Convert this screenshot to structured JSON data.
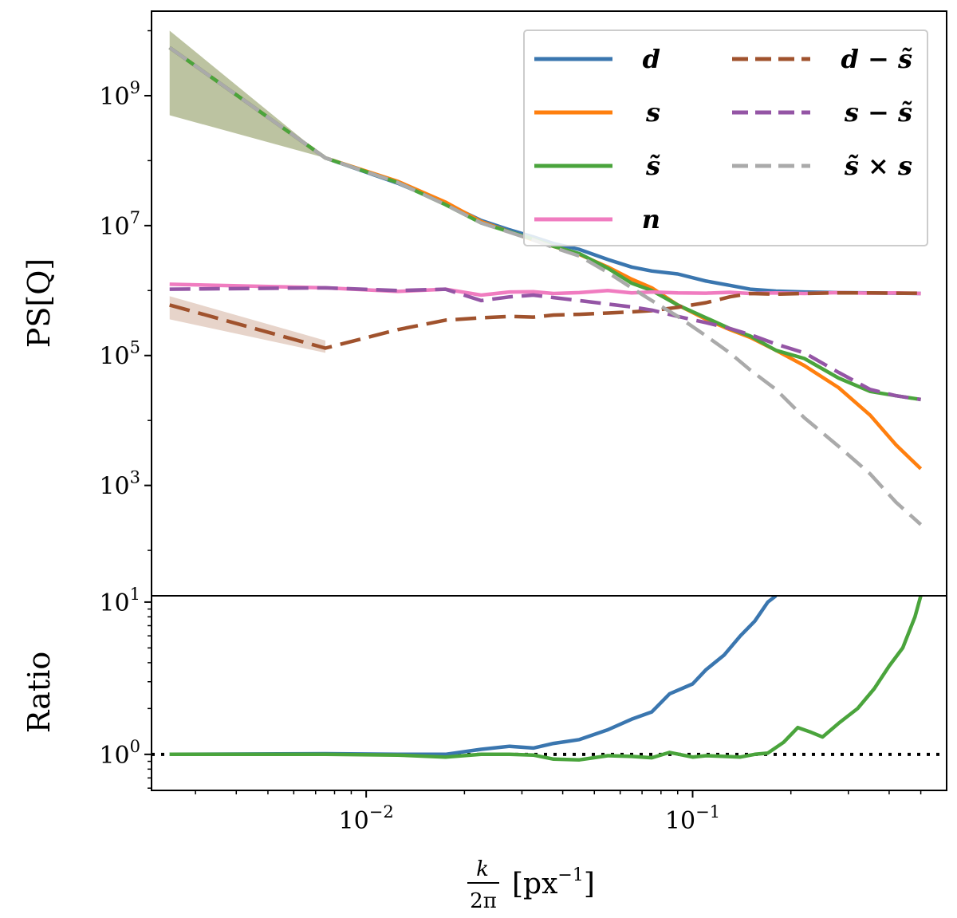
{
  "chart_data": [
    {
      "type": "line",
      "panel": "top",
      "ylabel": "PS[Q]",
      "xscale": "log",
      "yscale": "log",
      "xlim": [
        0.0022,
        0.6
      ],
      "ylim": [
        20,
        20000000000
      ],
      "yticks": [
        {
          "value": 1000,
          "label": "10",
          "exp": "3"
        },
        {
          "value": 100000,
          "label": "10",
          "exp": "5"
        },
        {
          "value": 10000000,
          "label": "10",
          "exp": "7"
        },
        {
          "value": 1000000000,
          "label": "10",
          "exp": "9"
        }
      ],
      "legend": {
        "position": "top-right",
        "columns": 2,
        "entries": [
          {
            "key": "d",
            "label": "d"
          },
          {
            "key": "s",
            "label": "s"
          },
          {
            "key": "s_tilde",
            "label": "s̃"
          },
          {
            "key": "n",
            "label": "n"
          },
          {
            "key": "d_minus_s_tilde",
            "label": "d − s̃"
          },
          {
            "key": "s_minus_s_tilde",
            "label": "s − s̃"
          },
          {
            "key": "s_tilde_times_s",
            "label": "s̃ × s"
          }
        ]
      },
      "bands": [
        {
          "name": "s_tilde_uncertainty",
          "color": "#6b7a2e",
          "opacity": 0.45,
          "x": [
            0.0025,
            0.0075
          ],
          "upper": [
            10000000000,
            110000000
          ],
          "lower": [
            500000000,
            110000000
          ]
        },
        {
          "name": "d_minus_s_tilde_uncertainty",
          "color": "#a0522d",
          "opacity": 0.25,
          "x": [
            0.0025,
            0.0075
          ],
          "upper": [
            820000,
            170000
          ],
          "lower": [
            360000,
            110000
          ]
        }
      ],
      "series": [
        {
          "key": "d",
          "name": "d",
          "color": "#3a76af",
          "dash": "solid",
          "x": [
            0.0025,
            0.0075,
            0.0125,
            0.0175,
            0.0225,
            0.0275,
            0.0325,
            0.0375,
            0.045,
            0.055,
            0.065,
            0.075,
            0.09,
            0.11,
            0.13,
            0.15,
            0.18,
            0.22,
            0.28,
            0.35,
            0.42,
            0.5
          ],
          "y": [
            5500000000,
            110000000,
            45000000,
            22000000,
            12000000,
            8600000,
            6700000,
            5300000,
            4300000,
            3000000,
            2300000,
            2000000,
            1800000,
            1400000,
            1200000,
            1050000,
            980000,
            950000,
            930000,
            920000,
            910000,
            900000
          ]
        },
        {
          "key": "s",
          "name": "s",
          "color": "#ff7f0e",
          "dash": "solid",
          "x": [
            0.0025,
            0.0075,
            0.0125,
            0.0175,
            0.0225,
            0.0275,
            0.0325,
            0.0375,
            0.045,
            0.055,
            0.065,
            0.075,
            0.09,
            0.11,
            0.13,
            0.15,
            0.18,
            0.22,
            0.28,
            0.35,
            0.42,
            0.5
          ],
          "y": [
            5500000000,
            110000000,
            48000000,
            23000000,
            11500000,
            8000000,
            6000000,
            4800000,
            3600000,
            2300000,
            1500000,
            1100000,
            600000,
            360000,
            250000,
            190000,
            120000,
            70000,
            32000,
            12000,
            4200,
            1800
          ]
        },
        {
          "key": "s_tilde",
          "name": "s̃",
          "color": "#4aa43c",
          "dash": "solid",
          "x": [
            0.0025,
            0.0075,
            0.0125,
            0.0175,
            0.0225,
            0.0275,
            0.0325,
            0.0375,
            0.045,
            0.055,
            0.065,
            0.075,
            0.09,
            0.11,
            0.13,
            0.15,
            0.18,
            0.22,
            0.28,
            0.35,
            0.42,
            0.5
          ],
          "y": [
            5500000000,
            110000000,
            46000000,
            21000000,
            11000000,
            8000000,
            6200000,
            4800000,
            3700000,
            2200000,
            1300000,
            1000000,
            600000,
            380000,
            260000,
            200000,
            120000,
            90000,
            45000,
            28000,
            24000,
            21000
          ]
        },
        {
          "key": "n",
          "name": "n",
          "color": "#f07cc0",
          "dash": "solid",
          "x": [
            0.0025,
            0.0075,
            0.0125,
            0.0175,
            0.0225,
            0.0275,
            0.0325,
            0.0375,
            0.045,
            0.055,
            0.065,
            0.075,
            0.09,
            0.11,
            0.13,
            0.15,
            0.18,
            0.22,
            0.28,
            0.35,
            0.42,
            0.5
          ],
          "y": [
            1250000,
            1100000,
            970000,
            1050000,
            850000,
            950000,
            960000,
            900000,
            930000,
            1000000,
            920000,
            950000,
            920000,
            910000,
            940000,
            900000,
            920000,
            900000,
            930000,
            910000,
            920000,
            900000
          ]
        },
        {
          "key": "d_minus_s_tilde",
          "name": "d − s̃",
          "color": "#a0522d",
          "dash": "dashed",
          "x": [
            0.0025,
            0.0075,
            0.0125,
            0.0175,
            0.0225,
            0.0275,
            0.0325,
            0.0375,
            0.045,
            0.055,
            0.065,
            0.075,
            0.09,
            0.11,
            0.13,
            0.15,
            0.18,
            0.22,
            0.28,
            0.35,
            0.42,
            0.5
          ],
          "y": [
            600000,
            130000,
            250000,
            350000,
            380000,
            400000,
            390000,
            420000,
            430000,
            450000,
            470000,
            490000,
            550000,
            650000,
            800000,
            900000,
            880000,
            900000,
            920000,
            920000,
            910000,
            910000
          ]
        },
        {
          "key": "s_minus_s_tilde",
          "name": "s − s̃",
          "color": "#9455a5",
          "dash": "dashed",
          "x": [
            0.0025,
            0.0075,
            0.0125,
            0.0175,
            0.0225,
            0.0275,
            0.0325,
            0.0375,
            0.045,
            0.055,
            0.065,
            0.075,
            0.09,
            0.11,
            0.13,
            0.15,
            0.18,
            0.22,
            0.28,
            0.35,
            0.42,
            0.5
          ],
          "y": [
            1050000,
            1100000,
            1000000,
            1050000,
            700000,
            800000,
            850000,
            780000,
            700000,
            620000,
            560000,
            500000,
            400000,
            320000,
            260000,
            210000,
            150000,
            110000,
            55000,
            30000,
            24000,
            21000
          ]
        },
        {
          "key": "s_tilde_times_s",
          "name": "s̃ × s",
          "color": "#aaaaaa",
          "dash": "dashed",
          "x": [
            0.0025,
            0.0075,
            0.0125,
            0.0175,
            0.0225,
            0.0275,
            0.0325,
            0.0375,
            0.045,
            0.055,
            0.065,
            0.075,
            0.09,
            0.11,
            0.13,
            0.15,
            0.18,
            0.22,
            0.28,
            0.35,
            0.42,
            0.5
          ],
          "y": [
            5500000000,
            110000000,
            46000000,
            21000000,
            11000000,
            7900000,
            6000000,
            4600000,
            3400000,
            1900000,
            1100000,
            700000,
            400000,
            200000,
            110000,
            60000,
            30000,
            11000,
            4000,
            1500,
            550,
            250
          ]
        }
      ]
    },
    {
      "type": "line",
      "panel": "bottom",
      "ylabel": "Ratio",
      "xlabel": "k/2π [px⁻¹]",
      "xlabel_parts": {
        "numerator": "k",
        "denominator": "2π",
        "unit": "px",
        "unit_exp": "−1"
      },
      "xscale": "log",
      "yscale": "log",
      "xlim": [
        0.0022,
        0.6
      ],
      "ylim": [
        0.58,
        11
      ],
      "xticks": [
        {
          "value": 0.01,
          "label": "10",
          "exp": "−2"
        },
        {
          "value": 0.1,
          "label": "10",
          "exp": "−1"
        }
      ],
      "yticks": [
        {
          "value": 1,
          "label": "10",
          "exp": "0"
        },
        {
          "value": 10,
          "label": "10",
          "exp": "1"
        }
      ],
      "reference_line": {
        "y": 1.0,
        "style": "dotted",
        "color": "#000000"
      },
      "series": [
        {
          "key": "ratio_d",
          "name": "d",
          "color": "#3a76af",
          "dash": "solid",
          "x": [
            0.0025,
            0.0075,
            0.0125,
            0.0175,
            0.0225,
            0.0275,
            0.0325,
            0.0375,
            0.045,
            0.055,
            0.065,
            0.075,
            0.085,
            0.1,
            0.11,
            0.125,
            0.14,
            0.155,
            0.17,
            0.18
          ],
          "y": [
            1.0,
            1.01,
            1.0,
            1.0,
            1.08,
            1.13,
            1.1,
            1.18,
            1.25,
            1.45,
            1.7,
            1.9,
            2.5,
            2.9,
            3.6,
            4.5,
            6.0,
            7.5,
            10.0,
            11.0
          ]
        },
        {
          "key": "ratio_s_tilde",
          "name": "s̃",
          "color": "#4aa43c",
          "dash": "solid",
          "x": [
            0.0025,
            0.0075,
            0.0125,
            0.0175,
            0.0225,
            0.0275,
            0.0325,
            0.0375,
            0.045,
            0.055,
            0.065,
            0.075,
            0.085,
            0.1,
            0.11,
            0.125,
            0.14,
            0.155,
            0.17,
            0.19,
            0.21,
            0.23,
            0.25,
            0.28,
            0.32,
            0.36,
            0.4,
            0.44,
            0.48,
            0.5
          ],
          "y": [
            1.0,
            1.0,
            0.99,
            0.96,
            1.0,
            1.0,
            0.99,
            0.93,
            0.92,
            0.98,
            0.97,
            0.95,
            1.03,
            0.96,
            0.98,
            0.97,
            0.96,
            1.0,
            1.02,
            1.2,
            1.5,
            1.4,
            1.3,
            1.6,
            2.0,
            2.7,
            3.8,
            5.0,
            8.0,
            11.0
          ]
        }
      ]
    }
  ]
}
